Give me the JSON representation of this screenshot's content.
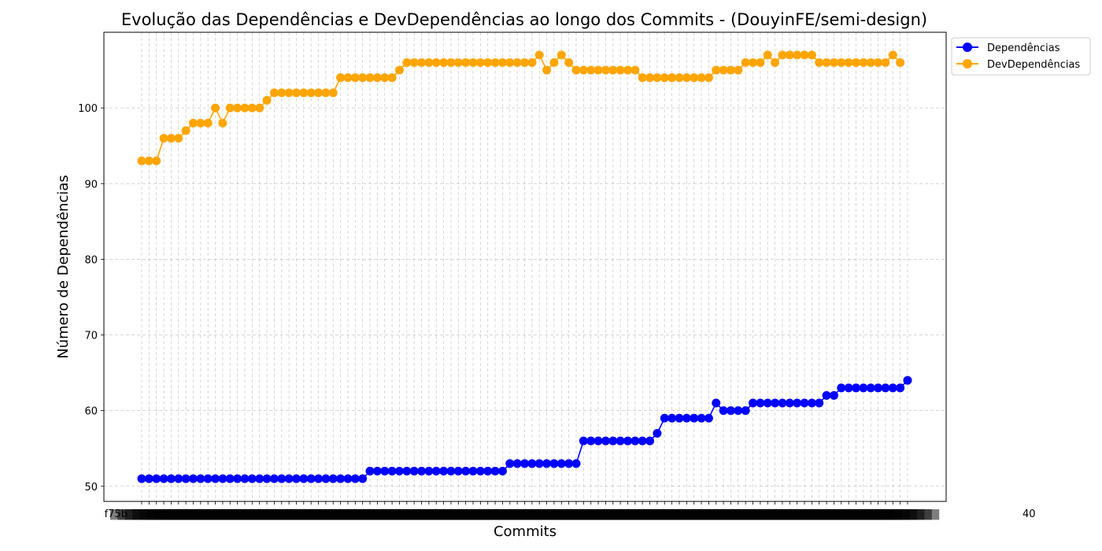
{
  "chart_data": {
    "type": "line",
    "title": "Evolução das Dependências e DevDependências ao longo dos Commits - (DouyinFE/semi-design)",
    "xlabel": "Commits",
    "ylabel": "Número de Dependências",
    "ylim": [
      48,
      110
    ],
    "yticks": [
      50,
      60,
      70,
      80,
      90,
      100
    ],
    "grid": true,
    "legend_position": "outside top-right",
    "x_tick_labels_first": "f75b",
    "x_tick_labels_last": "40",
    "series": [
      {
        "name": "Dependências",
        "color": "#0000ff",
        "values": [
          51,
          51,
          51,
          51,
          51,
          51,
          51,
          51,
          51,
          51,
          51,
          51,
          51,
          51,
          51,
          51,
          51,
          51,
          51,
          51,
          51,
          51,
          51,
          51,
          51,
          51,
          51,
          51,
          51,
          51,
          51,
          52,
          52,
          52,
          52,
          52,
          52,
          52,
          52,
          52,
          52,
          52,
          52,
          52,
          52,
          52,
          52,
          52,
          52,
          52,
          53,
          53,
          53,
          53,
          53,
          53,
          53,
          53,
          53,
          53,
          56,
          56,
          56,
          56,
          56,
          56,
          56,
          56,
          56,
          56,
          57,
          59,
          59,
          59,
          59,
          59,
          59,
          59,
          61,
          60,
          60,
          60,
          60,
          61,
          61,
          61,
          61,
          61,
          61,
          61,
          61,
          61,
          61,
          62,
          62,
          63,
          63,
          63,
          63,
          63,
          63,
          63,
          63,
          63,
          64
        ]
      },
      {
        "name": "DevDependências",
        "color": "#ffa500",
        "values": [
          93,
          93,
          93,
          96,
          96,
          96,
          97,
          98,
          98,
          98,
          100,
          98,
          100,
          100,
          100,
          100,
          100,
          101,
          102,
          102,
          102,
          102,
          102,
          102,
          102,
          102,
          102,
          104,
          104,
          104,
          104,
          104,
          104,
          104,
          104,
          105,
          106,
          106,
          106,
          106,
          106,
          106,
          106,
          106,
          106,
          106,
          106,
          106,
          106,
          106,
          106,
          106,
          106,
          106,
          107,
          105,
          106,
          107,
          106,
          105,
          105,
          105,
          105,
          105,
          105,
          105,
          105,
          105,
          104,
          104,
          104,
          104,
          104,
          104,
          104,
          104,
          104,
          104,
          105,
          105,
          105,
          105,
          106,
          106,
          106,
          107,
          106,
          107,
          107,
          107,
          107,
          107,
          106,
          106,
          106,
          106,
          106,
          106,
          106,
          106,
          106,
          106,
          107,
          106
        ]
      }
    ]
  }
}
